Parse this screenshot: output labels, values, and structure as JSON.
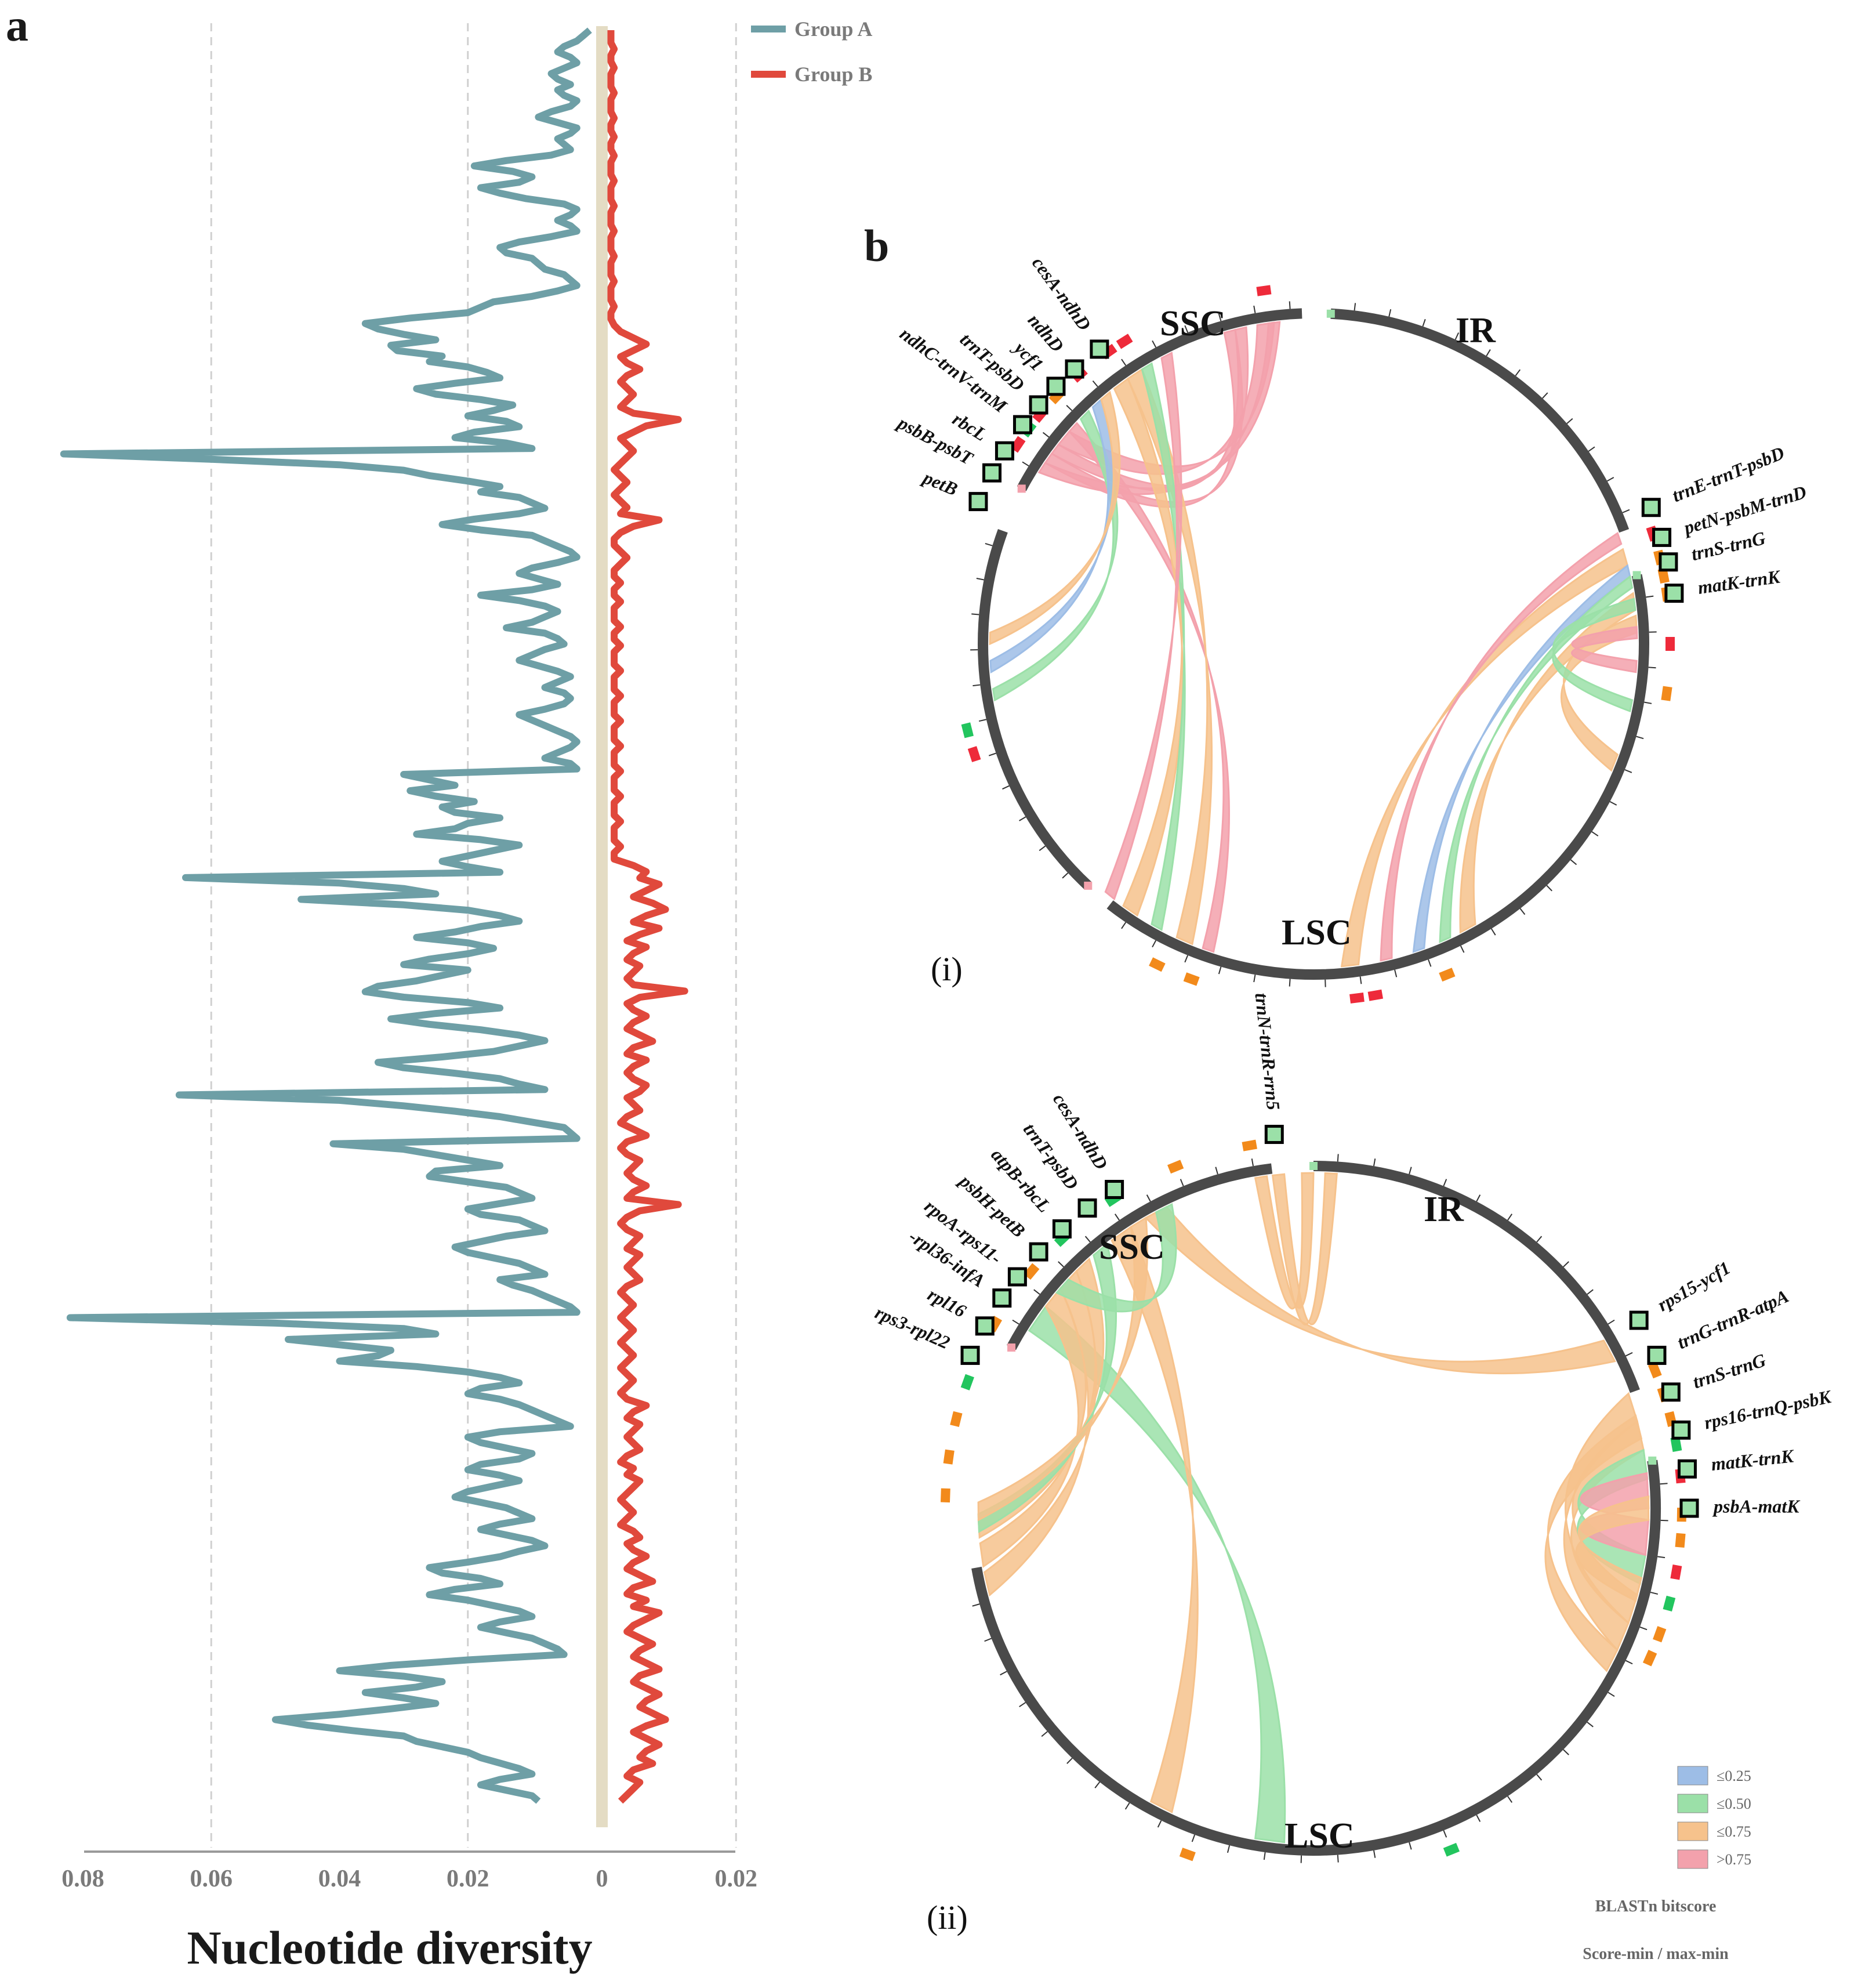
{
  "panel_a": {
    "letter": "a",
    "chart_data": {
      "type": "line",
      "xlabel": "Nucleotide diversity",
      "x_ticks": [
        "0.08",
        "0.06",
        "0.04",
        "0.02",
        "0",
        "0.02"
      ],
      "orientation": "mirrored-horizontal",
      "series": [
        {
          "name": "Group A",
          "color": "#6e9fa6",
          "direction": "left",
          "values": [
            0.001,
            0.002,
            0.003,
            0.005,
            0.006,
            0.004,
            0.003,
            0.005,
            0.007,
            0.006,
            0.004,
            0.006,
            0.005,
            0.003,
            0.004,
            0.007,
            0.009,
            0.006,
            0.003,
            0.004,
            0.006,
            0.005,
            0.004,
            0.007,
            0.014,
            0.019,
            0.013,
            0.01,
            0.012,
            0.018,
            0.015,
            0.011,
            0.005,
            0.003,
            0.004,
            0.006,
            0.004,
            0.003,
            0.007,
            0.012,
            0.015,
            0.014,
            0.01,
            0.009,
            0.008,
            0.005,
            0.004,
            0.003,
            0.006,
            0.01,
            0.016,
            0.018,
            0.02,
            0.029,
            0.036,
            0.034,
            0.03,
            0.025,
            0.032,
            0.031,
            0.024,
            0.026,
            0.02,
            0.017,
            0.015,
            0.022,
            0.028,
            0.025,
            0.018,
            0.013,
            0.016,
            0.02,
            0.014,
            0.012,
            0.019,
            0.022,
            0.014,
            0.01,
            0.083,
            0.06,
            0.04,
            0.03,
            0.026,
            0.02,
            0.015,
            0.018,
            0.012,
            0.01,
            0.008,
            0.012,
            0.019,
            0.024,
            0.018,
            0.01,
            0.008,
            0.006,
            0.004,
            0.003,
            0.006,
            0.01,
            0.012,
            0.009,
            0.006,
            0.01,
            0.018,
            0.012,
            0.008,
            0.006,
            0.008,
            0.01,
            0.014,
            0.008,
            0.006,
            0.005,
            0.008,
            0.01,
            0.012,
            0.009,
            0.006,
            0.004,
            0.006,
            0.008,
            0.005,
            0.004,
            0.005,
            0.008,
            0.012,
            0.01,
            0.008,
            0.006,
            0.004,
            0.003,
            0.004,
            0.006,
            0.008,
            0.004,
            0.003,
            0.03,
            0.026,
            0.022,
            0.029,
            0.025,
            0.019,
            0.024,
            0.022,
            0.015,
            0.02,
            0.022,
            0.028,
            0.018,
            0.012,
            0.016,
            0.02,
            0.024,
            0.02,
            0.015,
            0.064,
            0.04,
            0.03,
            0.025,
            0.046,
            0.03,
            0.02,
            0.015,
            0.012,
            0.018,
            0.022,
            0.028,
            0.02,
            0.016,
            0.02,
            0.026,
            0.03,
            0.02,
            0.024,
            0.028,
            0.034,
            0.036,
            0.03,
            0.02,
            0.015,
            0.025,
            0.032,
            0.026,
            0.018,
            0.012,
            0.008,
            0.012,
            0.016,
            0.024,
            0.034,
            0.03,
            0.022,
            0.015,
            0.012,
            0.008,
            0.065,
            0.04,
            0.03,
            0.022,
            0.015,
            0.01,
            0.005,
            0.004,
            0.003,
            0.041,
            0.03,
            0.025,
            0.02,
            0.015,
            0.025,
            0.026,
            0.02,
            0.014,
            0.012,
            0.01,
            0.015,
            0.02,
            0.018,
            0.012,
            0.01,
            0.008,
            0.014,
            0.018,
            0.022,
            0.02,
            0.016,
            0.012,
            0.01,
            0.008,
            0.015,
            0.013,
            0.01,
            0.008,
            0.006,
            0.004,
            0.003,
            0.082,
            0.05,
            0.03,
            0.025,
            0.048,
            0.04,
            0.032,
            0.034,
            0.04,
            0.028,
            0.02,
            0.015,
            0.012,
            0.018,
            0.02,
            0.015,
            0.012,
            0.01,
            0.008,
            0.006,
            0.004,
            0.015,
            0.02,
            0.018,
            0.014,
            0.01,
            0.012,
            0.018,
            0.02,
            0.015,
            0.012,
            0.016,
            0.02,
            0.022,
            0.018,
            0.014,
            0.012,
            0.01,
            0.015,
            0.018,
            0.014,
            0.01,
            0.008,
            0.012,
            0.015,
            0.02,
            0.026,
            0.024,
            0.018,
            0.015,
            0.022,
            0.026,
            0.02,
            0.016,
            0.012,
            0.01,
            0.015,
            0.018,
            0.014,
            0.01,
            0.008,
            0.006,
            0.005,
            0.02,
            0.032,
            0.04,
            0.03,
            0.024,
            0.028,
            0.036,
            0.03,
            0.025,
            0.032,
            0.04,
            0.05,
            0.045,
            0.038,
            0.03,
            0.028,
            0.024,
            0.02,
            0.018,
            0.015,
            0.012,
            0.01,
            0.015,
            0.018,
            0.014,
            0.01,
            0.009
          ]
        },
        {
          "name": "Group B",
          "color": "#e0493c",
          "direction": "right",
          "values": [
            0.0005,
            0.0005,
            0.0005,
            0.001,
            0.0005,
            0.0005,
            0.001,
            0.0005,
            0.0005,
            0.0005,
            0.001,
            0.0005,
            0.0005,
            0.0005,
            0.001,
            0.0005,
            0.0005,
            0.001,
            0.0005,
            0.0005,
            0.001,
            0.0005,
            0.0005,
            0.0005,
            0.001,
            0.0005,
            0.0005,
            0.0005,
            0.001,
            0.0005,
            0.0005,
            0.0005,
            0.001,
            0.0005,
            0.0005,
            0.0005,
            0.001,
            0.0005,
            0.0005,
            0.0005,
            0.001,
            0.0005,
            0.0005,
            0.0005,
            0.001,
            0.0005,
            0.0005,
            0.001,
            0.002,
            0.004,
            0.006,
            0.004,
            0.002,
            0.003,
            0.005,
            0.003,
            0.002,
            0.003,
            0.004,
            0.003,
            0.002,
            0.004,
            0.011,
            0.006,
            0.004,
            0.002,
            0.003,
            0.004,
            0.003,
            0.002,
            0.001,
            0.002,
            0.003,
            0.002,
            0.001,
            0.002,
            0.003,
            0.002,
            0.008,
            0.004,
            0.002,
            0.001,
            0.001,
            0.002,
            0.003,
            0.002,
            0.001,
            0.001,
            0.002,
            0.001,
            0.001,
            0.002,
            0.001,
            0.001,
            0.001,
            0.002,
            0.001,
            0.001,
            0.002,
            0.001,
            0.001,
            0.001,
            0.002,
            0.001,
            0.001,
            0.001,
            0.002,
            0.001,
            0.001,
            0.001,
            0.002,
            0.001,
            0.001,
            0.001,
            0.002,
            0.001,
            0.001,
            0.001,
            0.002,
            0.001,
            0.001,
            0.001,
            0.002,
            0.001,
            0.001,
            0.001,
            0.002,
            0.001,
            0.001,
            0.001,
            0.002,
            0.001,
            0.001,
            0.004,
            0.006,
            0.005,
            0.008,
            0.006,
            0.004,
            0.007,
            0.009,
            0.006,
            0.004,
            0.008,
            0.005,
            0.003,
            0.006,
            0.004,
            0.003,
            0.005,
            0.004,
            0.003,
            0.004,
            0.012,
            0.005,
            0.003,
            0.004,
            0.006,
            0.004,
            0.003,
            0.005,
            0.007,
            0.004,
            0.003,
            0.006,
            0.004,
            0.003,
            0.004,
            0.006,
            0.005,
            0.003,
            0.004,
            0.005,
            0.003,
            0.002,
            0.004,
            0.006,
            0.003,
            0.002,
            0.003,
            0.005,
            0.004,
            0.003,
            0.004,
            0.006,
            0.004,
            0.003,
            0.011,
            0.005,
            0.003,
            0.002,
            0.003,
            0.005,
            0.004,
            0.003,
            0.005,
            0.004,
            0.003,
            0.004,
            0.005,
            0.003,
            0.002,
            0.003,
            0.004,
            0.003,
            0.002,
            0.003,
            0.004,
            0.003,
            0.002,
            0.003,
            0.004,
            0.003,
            0.002,
            0.003,
            0.004,
            0.003,
            0.002,
            0.003,
            0.006,
            0.004,
            0.003,
            0.005,
            0.004,
            0.003,
            0.004,
            0.005,
            0.003,
            0.002,
            0.004,
            0.003,
            0.005,
            0.004,
            0.003,
            0.002,
            0.003,
            0.004,
            0.003,
            0.002,
            0.004,
            0.005,
            0.003,
            0.004,
            0.006,
            0.004,
            0.003,
            0.005,
            0.007,
            0.004,
            0.003,
            0.006,
            0.004,
            0.008,
            0.006,
            0.004,
            0.003,
            0.005,
            0.007,
            0.005,
            0.004,
            0.006,
            0.008,
            0.005,
            0.004,
            0.006,
            0.008,
            0.006,
            0.005,
            0.007,
            0.009,
            0.006,
            0.004,
            0.006,
            0.008,
            0.006,
            0.005,
            0.007,
            0.004,
            0.003,
            0.005,
            0.004,
            0.003,
            0.002
          ]
        }
      ]
    }
  },
  "panel_b": {
    "letter": "b",
    "sub_i": {
      "label": "(i)",
      "regions": [
        "SSC",
        "IR",
        "LSC"
      ],
      "genes_left": [
        "cesA-ndhD",
        "ndhD",
        "ycf1",
        "trnT-psbD",
        "ndhC-trnV-trnM",
        "rbcL",
        "psbB-psbT",
        "petB"
      ],
      "genes_right": [
        "trnE-trnT-psbD",
        "petN-psbM-trnD",
        "trnS-trnG",
        "matK-trnK"
      ]
    },
    "sub_ii": {
      "label": "(ii)",
      "regions": [
        "SSC",
        "IR",
        "LSC"
      ],
      "genes_top": [
        "trnN-trnR-rrn5"
      ],
      "genes_left": [
        "cesA-ndhD",
        "trnT-psbD",
        "atpB-rbcL",
        "psbH-petB",
        "rpoA-rps11-",
        "-rpl36-infA",
        "rpl16",
        "rps3-rpl22"
      ],
      "genes_right": [
        "rps15-ycf1",
        "trnG-trnR-atpA",
        "trnS-trnG",
        "rps16-trnQ-psbK",
        "matK-trnK",
        "psbA-matK"
      ]
    },
    "legend": {
      "items": [
        {
          "label": "≤0.25",
          "color": "#9dbde6"
        },
        {
          "label": "≤0.50",
          "color": "#9be0a8"
        },
        {
          "label": "≤0.75",
          "color": "#f6c28c"
        },
        {
          "label": ">0.75",
          "color": "#f3a1ac"
        }
      ],
      "title": "BLASTn bitscore",
      "subtitle": "Score-min / max-min"
    }
  },
  "colors": {
    "groupA": "#6e9fa6",
    "groupB": "#e0493c",
    "center_band": "#e4dcc4",
    "ring": "#555555",
    "orange": "#f6c28c",
    "pink": "#f3a1ac",
    "green": "#9be0a8",
    "blue": "#9dbde6",
    "mark_orange": "#f28a1b",
    "mark_red": "#ee2a3a",
    "mark_green": "#22c55e"
  }
}
